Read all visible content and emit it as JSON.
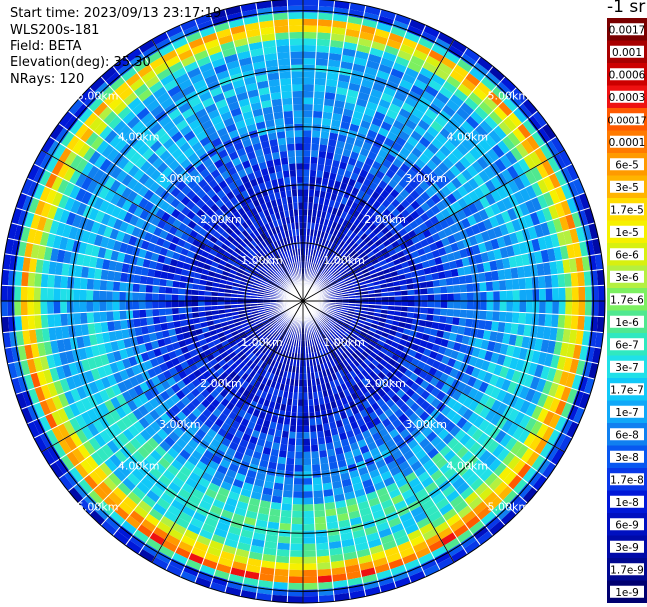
{
  "info": {
    "start_time": "Start time: 2023/09/13 23:17:19",
    "instrument": "WLS200s-181",
    "field": "Field: BETA",
    "elevation": "Elevation(deg): 35.30",
    "nrays": "NRays: 120"
  },
  "colorbar": {
    "unit": "-1 sr",
    "ticks": [
      "0.0017",
      "0.001",
      "0.0006",
      "0.0003",
      "0.00017",
      "0.0001",
      "6e-5",
      "3e-5",
      "1.7e-5",
      "1e-5",
      "6e-6",
      "3e-6",
      "1.7e-6",
      "1e-6",
      "6e-7",
      "3e-7",
      "1.7e-7",
      "1e-7",
      "6e-8",
      "3e-8",
      "1.7e-8",
      "1e-8",
      "6e-9",
      "3e-9",
      "1.7e-9",
      "1e-9"
    ],
    "colors": [
      "#7a0000",
      "#a80000",
      "#cc0000",
      "#ee1111",
      "#ff5a00",
      "#ff7a00",
      "#ff9a00",
      "#ffb400",
      "#ffdc00",
      "#f6f000",
      "#d8f010",
      "#b4f040",
      "#7cf060",
      "#50e890",
      "#30e8c0",
      "#20e0e8",
      "#10c8f8",
      "#10a8f8",
      "#1080f0",
      "#0858f0",
      "#0838e8",
      "#0018d8",
      "#0010c0",
      "#000aa8",
      "#000890",
      "#000070"
    ]
  },
  "range_ring_labels": [
    "1.00km",
    "2.00km",
    "3.00km",
    "4.00km",
    "5.00km"
  ],
  "chart_data": {
    "type": "heatmap",
    "projection": "polar (PPI)",
    "field": "BETA",
    "unit": "sr^-1",
    "n_rays": 120,
    "elevation_deg": 35.3,
    "range_rings_km": [
      1,
      2,
      3,
      4,
      5
    ],
    "color_scale": "log",
    "value_range": [
      1e-09,
      0.0017
    ],
    "radial_profile_log10_beta": [
      {
        "range_km": 0.1,
        "log10_beta": -8.5
      },
      {
        "range_km": 1.0,
        "log10_beta": -8.3
      },
      {
        "range_km": 2.0,
        "log10_beta": -8.0
      },
      {
        "range_km": 3.0,
        "log10_beta": -7.3
      },
      {
        "range_km": 3.8,
        "log10_beta": -6.8
      },
      {
        "range_km": 4.3,
        "log10_beta": -7.2
      },
      {
        "range_km": 4.6,
        "log10_beta": -5.5
      },
      {
        "range_km": 4.8,
        "log10_beta": -4.4
      },
      {
        "range_km": 5.0,
        "log10_beta": -7.6
      },
      {
        "range_km": 5.2,
        "log10_beta": -8.2
      }
    ]
  }
}
